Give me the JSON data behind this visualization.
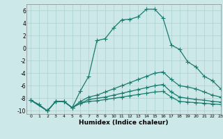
{
  "xlabel": "Humidex (Indice chaleur)",
  "bg_color": "#cce8e8",
  "line_color": "#1a7a6e",
  "grid_color": "#aad0d0",
  "xlim": [
    -0.5,
    23
  ],
  "ylim": [
    -10.5,
    7
  ],
  "yticks": [
    -10,
    -8,
    -6,
    -4,
    -2,
    0,
    2,
    4,
    6
  ],
  "xticks": [
    0,
    1,
    2,
    3,
    4,
    5,
    6,
    7,
    8,
    9,
    10,
    11,
    12,
    13,
    14,
    15,
    16,
    17,
    18,
    19,
    20,
    21,
    22,
    23
  ],
  "line1_x": [
    0,
    1,
    2,
    3,
    4,
    5,
    6,
    7,
    8,
    9,
    10,
    11,
    12,
    13,
    14,
    15,
    16,
    17,
    18,
    19,
    20,
    21,
    22,
    23
  ],
  "line1_y": [
    -8.3,
    -9.0,
    -10.0,
    -8.5,
    -8.5,
    -9.5,
    -6.8,
    -4.5,
    1.2,
    1.5,
    3.2,
    4.5,
    4.6,
    5.0,
    6.2,
    6.2,
    4.8,
    0.5,
    -0.2,
    -2.2,
    -3.0,
    -4.5,
    -5.2,
    -6.5
  ],
  "line2_x": [
    0,
    2,
    3,
    4,
    5,
    6,
    7,
    8,
    9,
    10,
    11,
    12,
    13,
    14,
    15,
    16,
    17,
    18,
    19,
    20,
    21,
    22,
    23
  ],
  "line2_y": [
    -8.3,
    -10.0,
    -8.5,
    -8.5,
    -9.5,
    -8.5,
    -7.8,
    -7.5,
    -7.0,
    -6.5,
    -6.0,
    -5.5,
    -5.0,
    -4.5,
    -4.0,
    -3.8,
    -5.0,
    -6.0,
    -6.2,
    -6.5,
    -7.0,
    -7.5,
    -7.8
  ],
  "line3_x": [
    0,
    2,
    3,
    4,
    5,
    6,
    7,
    8,
    9,
    10,
    11,
    12,
    13,
    14,
    15,
    16,
    17,
    18,
    19,
    20,
    21,
    22,
    23
  ],
  "line3_y": [
    -8.3,
    -10.0,
    -8.5,
    -8.5,
    -9.5,
    -8.8,
    -8.2,
    -8.0,
    -7.8,
    -7.5,
    -7.2,
    -6.9,
    -6.6,
    -6.3,
    -6.0,
    -5.8,
    -7.0,
    -7.8,
    -8.0,
    -8.2,
    -8.3,
    -8.5,
    -8.6
  ],
  "line4_x": [
    0,
    2,
    3,
    4,
    5,
    6,
    7,
    8,
    9,
    10,
    11,
    12,
    13,
    14,
    15,
    16,
    17,
    18,
    19,
    20,
    21,
    22,
    23
  ],
  "line4_y": [
    -8.3,
    -10.0,
    -8.5,
    -8.5,
    -9.5,
    -8.8,
    -8.5,
    -8.4,
    -8.2,
    -8.0,
    -7.8,
    -7.6,
    -7.4,
    -7.2,
    -7.0,
    -6.9,
    -7.8,
    -8.5,
    -8.6,
    -8.7,
    -8.8,
    -8.9,
    -9.0
  ],
  "marker_size": 3,
  "linewidth": 0.9
}
